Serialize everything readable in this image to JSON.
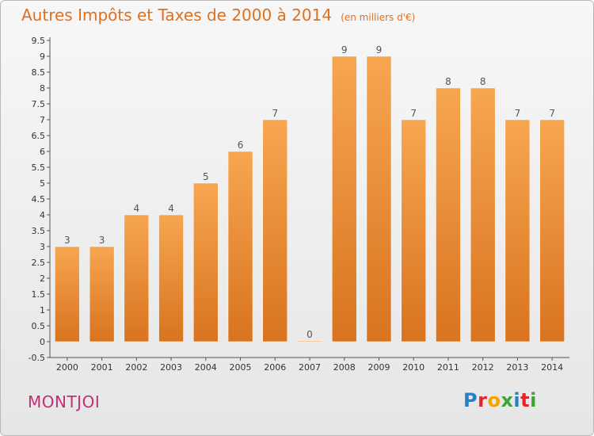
{
  "header": {
    "title": "Autres Impôts et Taxes de 2000 à 2014",
    "subtitle": "(en milliers d'€)"
  },
  "footer": {
    "place": "MONTJOI",
    "logo": [
      "P",
      "r",
      "o",
      "x",
      "i",
      "t",
      "i"
    ]
  },
  "colors": {
    "bar_top": "#f7a650",
    "bar_bottom": "#d9731f",
    "title": "#e0701f",
    "place": "#c0307a"
  },
  "chart_data": {
    "type": "bar",
    "categories": [
      "2000",
      "2001",
      "2002",
      "2003",
      "2004",
      "2005",
      "2006",
      "2007",
      "2008",
      "2009",
      "2010",
      "2011",
      "2012",
      "2013",
      "2014"
    ],
    "values": [
      3,
      3,
      4,
      4,
      5,
      6,
      7,
      0,
      9,
      9,
      7,
      8,
      8,
      7,
      7
    ],
    "value_labels": [
      "3",
      "3",
      "4",
      "4",
      "5",
      "6",
      "7",
      "0",
      "9",
      "9",
      "7",
      "8",
      "8",
      "7",
      "7"
    ],
    "y_ticks": [
      "-0.5",
      "0",
      "0.5",
      "1",
      "1.5",
      "2",
      "2.5",
      "3",
      "3.5",
      "4",
      "4.5",
      "5",
      "5.5",
      "6",
      "6.5",
      "7",
      "7.5",
      "8",
      "8.5",
      "9",
      "9.5"
    ],
    "ylim": [
      -0.5,
      9.5
    ],
    "grid": false,
    "legend": "none"
  }
}
